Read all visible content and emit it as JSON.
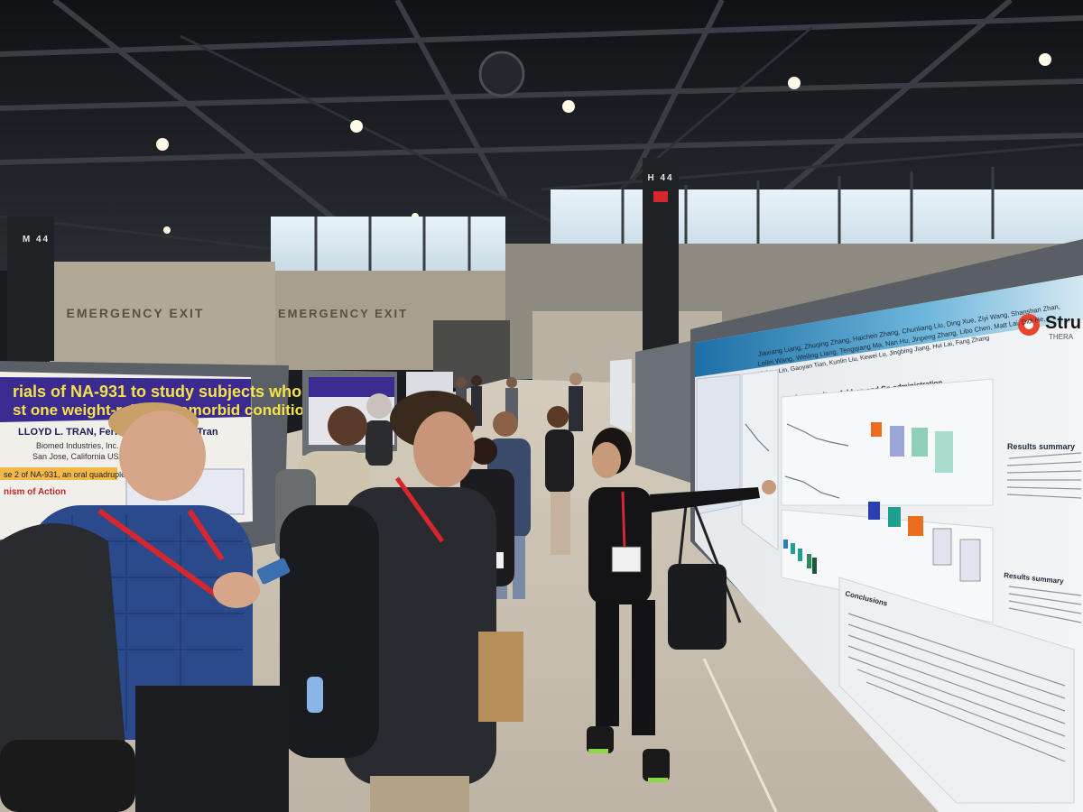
{
  "scene": {
    "alt": "Poster session in a convention hall: attendees listen as a presenter points at a research poster."
  },
  "signs": {
    "exit_left": "EMERGENCY EXIT",
    "exit_center": "EMERGENCY EXIT",
    "column_label": "H 44",
    "column_label_left": "M 44"
  },
  "left_poster": {
    "title_line1": "rials of NA-931 to study subjects who are obese",
    "title_line2": "st one weight-related comorbid condition",
    "authors": "LLOYD L. TRAN, Fern Vu and Zung V. Tran",
    "affiliation1": "Biomed Industries, Inc.",
    "affiliation2": "San Jose, California USA",
    "section1": "se 2 of NA-931, an oral quadruple",
    "section2": "nism of Action"
  },
  "right_poster": {
    "logo_text": "Stru",
    "logo_sub": "THERA",
    "authors_line1": "Jiaxiang Liang, Zhuqing Zhang, Haichen Zhang, Chunliang Liu, Ding Xue, Ziyi Wang, Shanshan Zhan,",
    "authors_line2": "Leilei Wang, Weiling Liang, Tengqiang Ma, Nan Hu, Jinpeng Zhang, Libo Chen, Matt Lai, Didi He,",
    "authors_line3": "Xichen Lin, Gaoyan Tian, Kunlin Liu, Kewei Lu, Jingbing Jiang, Hui Lai, Fang Zhang",
    "section_results": "In vivo results – Add-on and Co-administration",
    "results_summary": "Results summary",
    "conclusions": "Conclusions"
  },
  "colors": {
    "ceiling": "#17191d",
    "wall": "#a89f91",
    "floor": "#c9c1b3",
    "left_poster_band": "#3b2a8f",
    "right_poster_band": "#2a7fb3",
    "lanyard": "#d8262e"
  }
}
